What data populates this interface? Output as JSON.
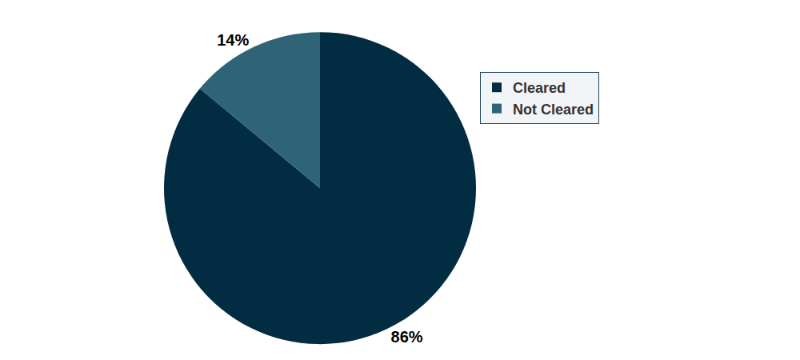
{
  "chart_data": {
    "type": "pie",
    "categories": [
      "Cleared",
      "Not Cleared"
    ],
    "values": [
      86,
      14
    ],
    "value_labels": [
      "86%",
      "14%"
    ],
    "colors": [
      "#022c42",
      "#2f6377"
    ],
    "data_labels": true,
    "legend": "top right"
  }
}
